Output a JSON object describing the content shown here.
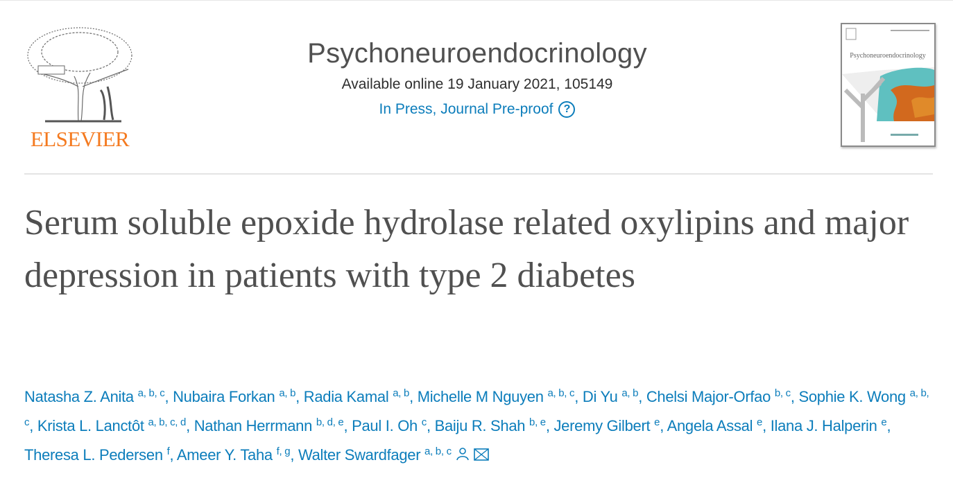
{
  "publisher": {
    "logo_text": "ELSEVIER"
  },
  "journal": {
    "title": "Psychoneuroendocrinology",
    "availability": "Available online 19 January 2021, 105149",
    "status": "In Press, Journal Pre-proof",
    "cover_title": "Psychoneuroendocrinology"
  },
  "article": {
    "title": "Serum soluble epoxide hydrolase related oxylipins and major depression in patients with type 2 diabetes"
  },
  "authors": [
    {
      "name": "Natasha Z. Anita",
      "aff": "a, b, c"
    },
    {
      "name": "Nubaira Forkan",
      "aff": "a, b"
    },
    {
      "name": "Radia Kamal",
      "aff": "a, b"
    },
    {
      "name": "Michelle M Nguyen",
      "aff": "a, b, c"
    },
    {
      "name": "Di Yu",
      "aff": "a, b"
    },
    {
      "name": "Chelsi Major-Orfao",
      "aff": "b, c"
    },
    {
      "name": "Sophie K. Wong",
      "aff": "a, b, c"
    },
    {
      "name": "Krista L. Lanctôt",
      "aff": "a, b, c, d"
    },
    {
      "name": "Nathan Herrmann",
      "aff": "b, d, e"
    },
    {
      "name": "Paul I. Oh",
      "aff": "c"
    },
    {
      "name": "Baiju R. Shah",
      "aff": "b, e"
    },
    {
      "name": "Jeremy Gilbert",
      "aff": "e"
    },
    {
      "name": "Angela Assal",
      "aff": "e"
    },
    {
      "name": "Ilana J. Halperin",
      "aff": "e"
    },
    {
      "name": "Theresa L. Pedersen",
      "aff": "f"
    },
    {
      "name": "Ameer Y. Taha",
      "aff": "f, g"
    },
    {
      "name": "Walter Swardfager",
      "aff": "a, b, c"
    }
  ],
  "colors": {
    "link": "#0c7dbb",
    "brand": "#f47a20",
    "title": "#505050"
  },
  "icons": [
    "help-circle-icon",
    "person-icon",
    "envelope-icon"
  ]
}
